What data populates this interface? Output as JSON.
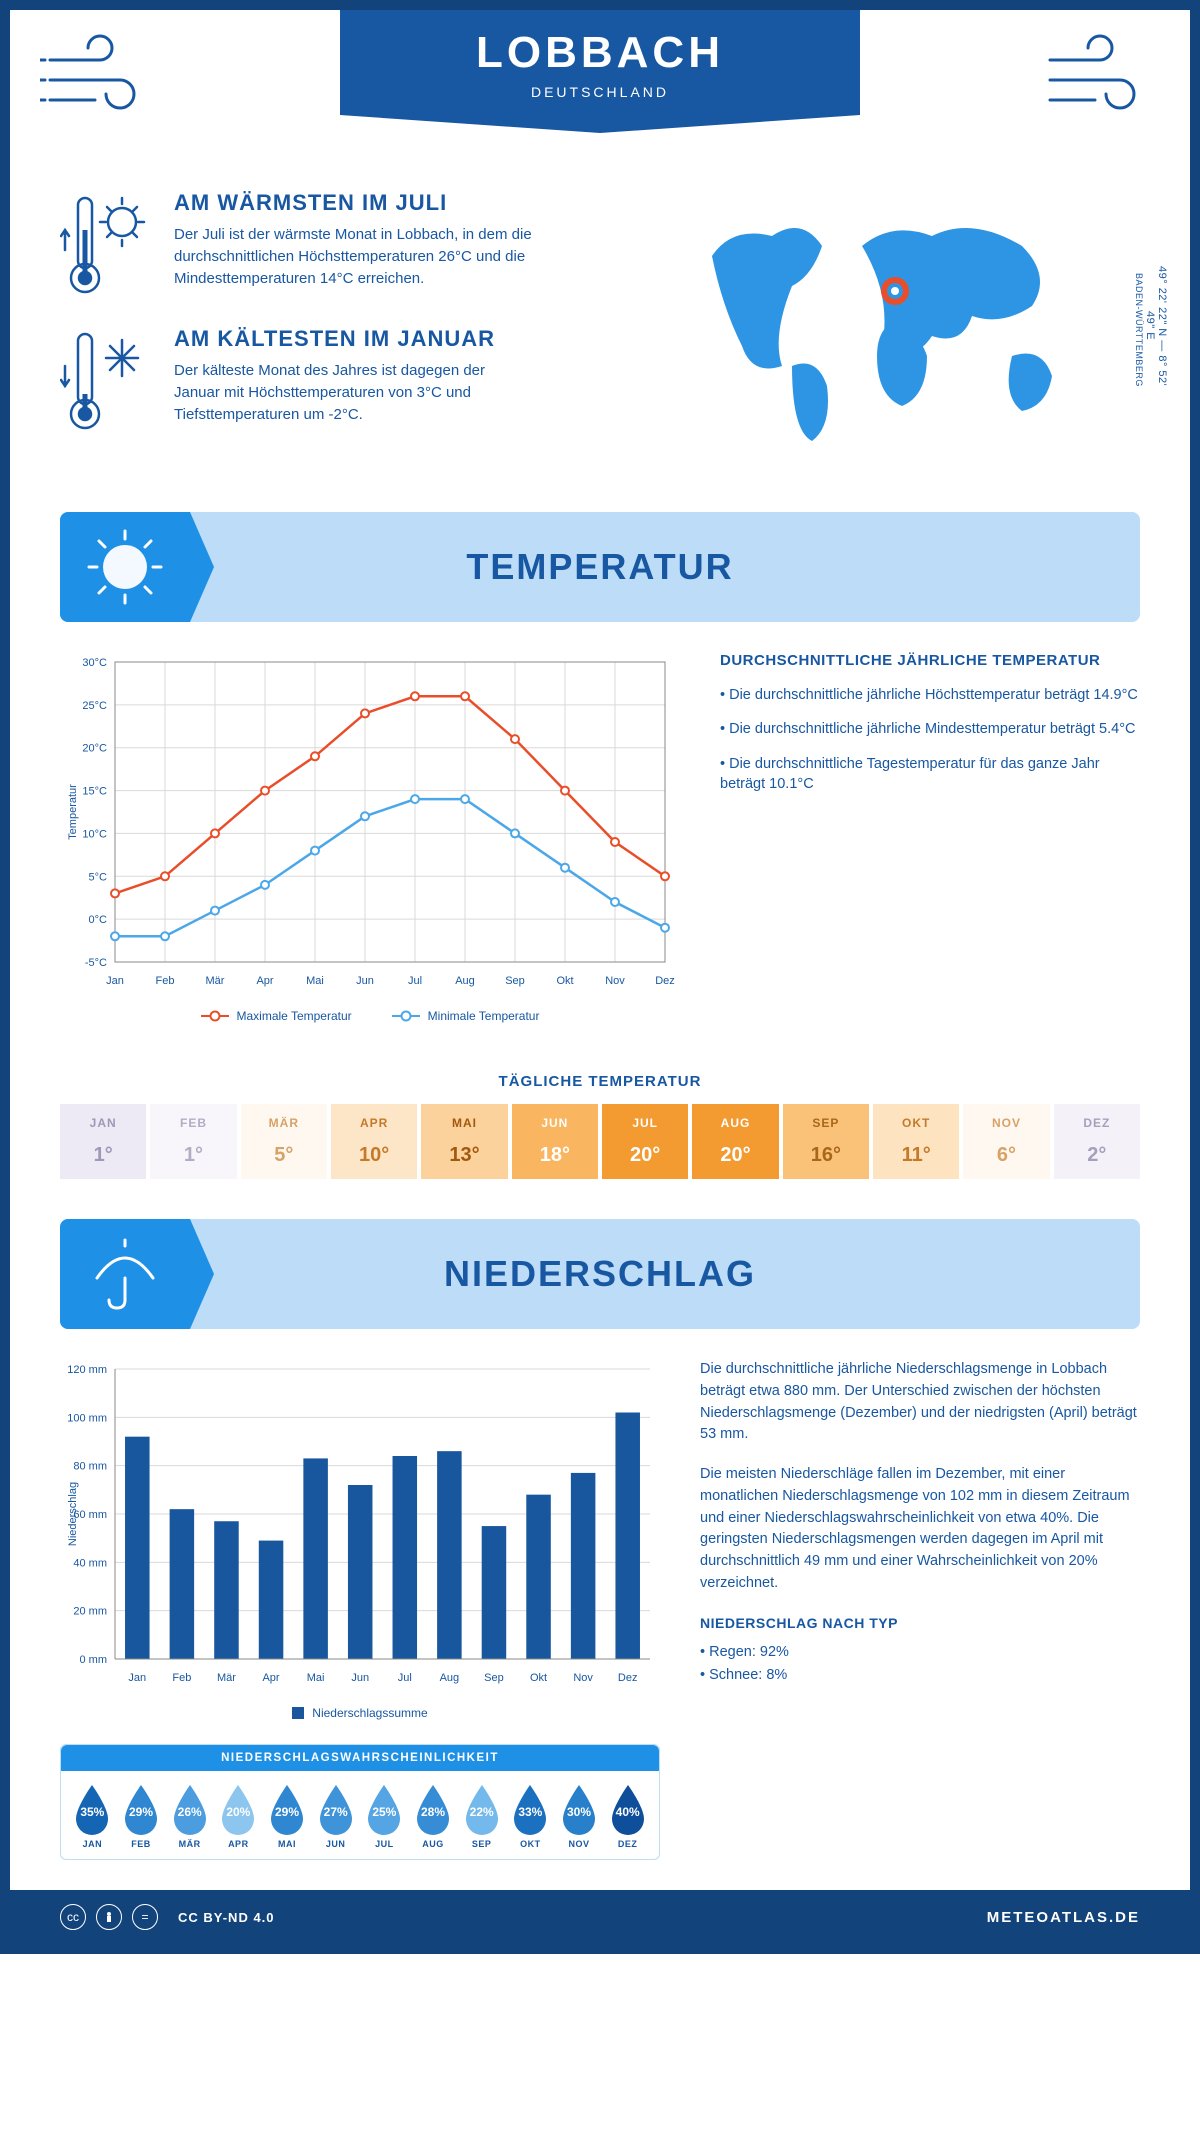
{
  "header": {
    "title": "LOBBACH",
    "subtitle": "DEUTSCHLAND"
  },
  "coords": {
    "lat": "49° 22' 22\" N",
    "lon": "8° 52' 49\" E",
    "region": "BADEN-WÜRTTEMBERG"
  },
  "overview": {
    "warm": {
      "title": "AM WÄRMSTEN IM JULI",
      "text": "Der Juli ist der wärmste Monat in Lobbach, in dem die durchschnittlichen Höchsttemperaturen 26°C und die Mindesttemperaturen 14°C erreichen."
    },
    "cold": {
      "title": "AM KÄLTESTEN IM JANUAR",
      "text": "Der kälteste Monat des Jahres ist dagegen der Januar mit Höchsttemperaturen von 3°C und Tiefsttemperaturen um -2°C."
    }
  },
  "temp_section": {
    "header": "TEMPERATUR",
    "months": [
      "Jan",
      "Feb",
      "Mär",
      "Apr",
      "Mai",
      "Jun",
      "Jul",
      "Aug",
      "Sep",
      "Okt",
      "Nov",
      "Dez"
    ],
    "max_series": [
      3,
      5,
      10,
      15,
      19,
      24,
      26,
      26,
      21,
      15,
      9,
      5
    ],
    "min_series": [
      -2,
      -2,
      1,
      4,
      8,
      12,
      14,
      14,
      10,
      6,
      2,
      -1
    ],
    "colors": {
      "max": "#e94e2a",
      "min": "#4ba7e8",
      "grid": "#d9d9d9",
      "axis": "#1857a2",
      "bg": "#ffffff"
    },
    "ylim": [
      -5,
      30
    ],
    "ytick_step": 5,
    "ylabel": "Temperatur",
    "legend_max": "Maximale Temperatur",
    "legend_min": "Minimale Temperatur",
    "desc_title": "DURCHSCHNITTLICHE JÄHRLICHE TEMPERATUR",
    "desc1": "• Die durchschnittliche jährliche Höchsttemperatur beträgt 14.9°C",
    "desc2": "• Die durchschnittliche jährliche Mindesttemperatur beträgt 5.4°C",
    "desc3": "• Die durchschnittliche Tagestemperatur für das ganze Jahr beträgt 10.1°C",
    "daily_title": "TÄGLICHE TEMPERATUR",
    "daily": [
      {
        "m": "JAN",
        "t": "1°",
        "bg": "#ede9f5",
        "fc": "#9e99b8"
      },
      {
        "m": "FEB",
        "t": "1°",
        "bg": "#f8f6fb",
        "fc": "#b1adc5"
      },
      {
        "m": "MÄR",
        "t": "5°",
        "bg": "#fef8f1",
        "fc": "#d6a268"
      },
      {
        "m": "APR",
        "t": "10°",
        "bg": "#fde6c8",
        "fc": "#c47a2a"
      },
      {
        "m": "MAI",
        "t": "13°",
        "bg": "#fbd19c",
        "fc": "#a3590d"
      },
      {
        "m": "JUN",
        "t": "18°",
        "bg": "#f9b55f",
        "fc": "#ffffff"
      },
      {
        "m": "JUL",
        "t": "20°",
        "bg": "#f39b30",
        "fc": "#ffffff"
      },
      {
        "m": "AUG",
        "t": "20°",
        "bg": "#f39b30",
        "fc": "#ffffff"
      },
      {
        "m": "SEP",
        "t": "16°",
        "bg": "#fac279",
        "fc": "#a96718"
      },
      {
        "m": "OKT",
        "t": "11°",
        "bg": "#fde3c0",
        "fc": "#c47a2a"
      },
      {
        "m": "NOV",
        "t": "6°",
        "bg": "#fef8f1",
        "fc": "#d6a268"
      },
      {
        "m": "DEZ",
        "t": "2°",
        "bg": "#f4f1f9",
        "fc": "#a6a0bd"
      }
    ]
  },
  "precip_section": {
    "header": "NIEDERSCHLAG",
    "months": [
      "Jan",
      "Feb",
      "Mär",
      "Apr",
      "Mai",
      "Jun",
      "Jul",
      "Aug",
      "Sep",
      "Okt",
      "Nov",
      "Dez"
    ],
    "values": [
      92,
      62,
      57,
      49,
      83,
      72,
      84,
      86,
      55,
      68,
      77,
      102
    ],
    "ylim": [
      0,
      120
    ],
    "ytick_step": 20,
    "ylabel": "Niederschlag",
    "bar_color": "#18579d",
    "grid_color": "#d9d9d9",
    "legend": "Niederschlagssumme",
    "desc1": "Die durchschnittliche jährliche Niederschlagsmenge in Lobbach beträgt etwa 880 mm. Der Unterschied zwischen der höchsten Niederschlagsmenge (Dezember) und der niedrigsten (April) beträgt 53 mm.",
    "desc2": "Die meisten Niederschläge fallen im Dezember, mit einer monatlichen Niederschlagsmenge von 102 mm in diesem Zeitraum und einer Niederschlagswahrscheinlichkeit von etwa 40%. Die geringsten Niederschlagsmengen werden dagegen im April mit durchschnittlich 49 mm und einer Wahrscheinlichkeit von 20% verzeichnet.",
    "type_title": "NIEDERSCHLAG NACH TYP",
    "type1": "• Regen: 92%",
    "type2": "• Schnee: 8%",
    "prob_title": "NIEDERSCHLAGSWAHRSCHEINLICHKEIT",
    "prob": [
      {
        "m": "JAN",
        "v": "35%",
        "c": "#1565b5"
      },
      {
        "m": "FEB",
        "v": "29%",
        "c": "#2f86d1"
      },
      {
        "m": "MÄR",
        "v": "26%",
        "c": "#4b9de0"
      },
      {
        "m": "APR",
        "v": "20%",
        "c": "#8cc5ee"
      },
      {
        "m": "MAI",
        "v": "29%",
        "c": "#2f86d1"
      },
      {
        "m": "JUN",
        "v": "27%",
        "c": "#3f93d9"
      },
      {
        "m": "JUL",
        "v": "25%",
        "c": "#55a4e3"
      },
      {
        "m": "AUG",
        "v": "28%",
        "c": "#378dd5"
      },
      {
        "m": "SEP",
        "v": "22%",
        "c": "#74b9eb"
      },
      {
        "m": "OKT",
        "v": "33%",
        "c": "#1c70c0"
      },
      {
        "m": "NOV",
        "v": "30%",
        "c": "#2880cb"
      },
      {
        "m": "DEZ",
        "v": "40%",
        "c": "#0e4e9a"
      }
    ]
  },
  "footer": {
    "license": "CC BY-ND 4.0",
    "site": "METEOATLAS.DE"
  }
}
